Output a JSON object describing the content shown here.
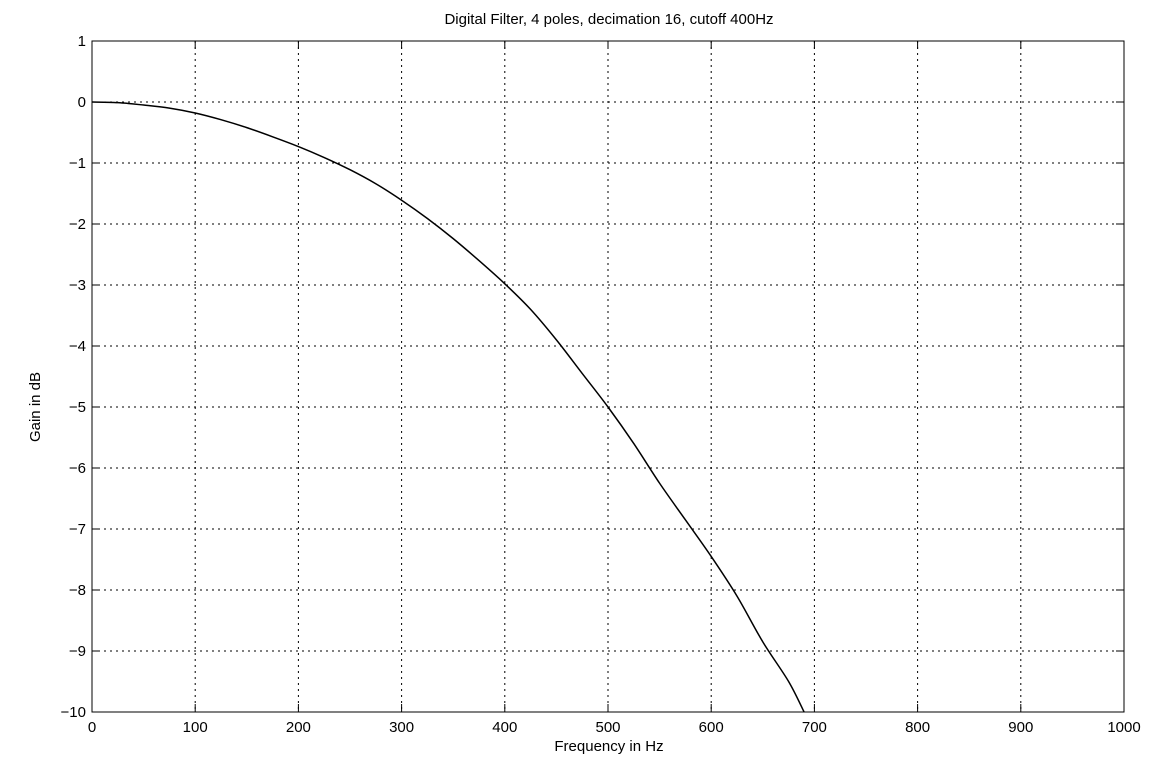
{
  "chart_data": {
    "type": "line",
    "title": "Digital Filter, 4 poles, decimation 16, cutoff 400Hz",
    "xlabel": "Frequency in Hz",
    "ylabel": "Gain in dB",
    "xlim": [
      0,
      1000
    ],
    "ylim": [
      -10,
      1
    ],
    "xticks": [
      0,
      100,
      200,
      300,
      400,
      500,
      600,
      700,
      800,
      900,
      1000
    ],
    "yticks": [
      1,
      0,
      -1,
      -2,
      -3,
      -4,
      -5,
      -6,
      -7,
      -8,
      -9,
      -10
    ],
    "xtick_labels": [
      "0",
      "100",
      "200",
      "300",
      "400",
      "500",
      "600",
      "700",
      "800",
      "900",
      "1000"
    ],
    "ytick_labels": [
      "1",
      "0",
      "−1",
      "−2",
      "−3",
      "−4",
      "−5",
      "−6",
      "−7",
      "−8",
      "−9",
      "−10"
    ],
    "grid": true,
    "line_color": "#000000",
    "series": [
      {
        "x": [
          0,
          25,
          50,
          75,
          100,
          125,
          150,
          175,
          200,
          225,
          250,
          275,
          300,
          325,
          350,
          375,
          400,
          425,
          450,
          475,
          500,
          525,
          550,
          575,
          600,
          625,
          650,
          675,
          690
        ],
        "y": [
          0,
          -0.01,
          -0.05,
          -0.1,
          -0.18,
          -0.29,
          -0.42,
          -0.57,
          -0.73,
          -0.91,
          -1.11,
          -1.34,
          -1.61,
          -1.91,
          -2.24,
          -2.6,
          -2.98,
          -3.4,
          -3.9,
          -4.45,
          -5.0,
          -5.6,
          -6.25,
          -6.85,
          -7.45,
          -8.1,
          -8.85,
          -9.5,
          -10.0
        ]
      }
    ]
  }
}
